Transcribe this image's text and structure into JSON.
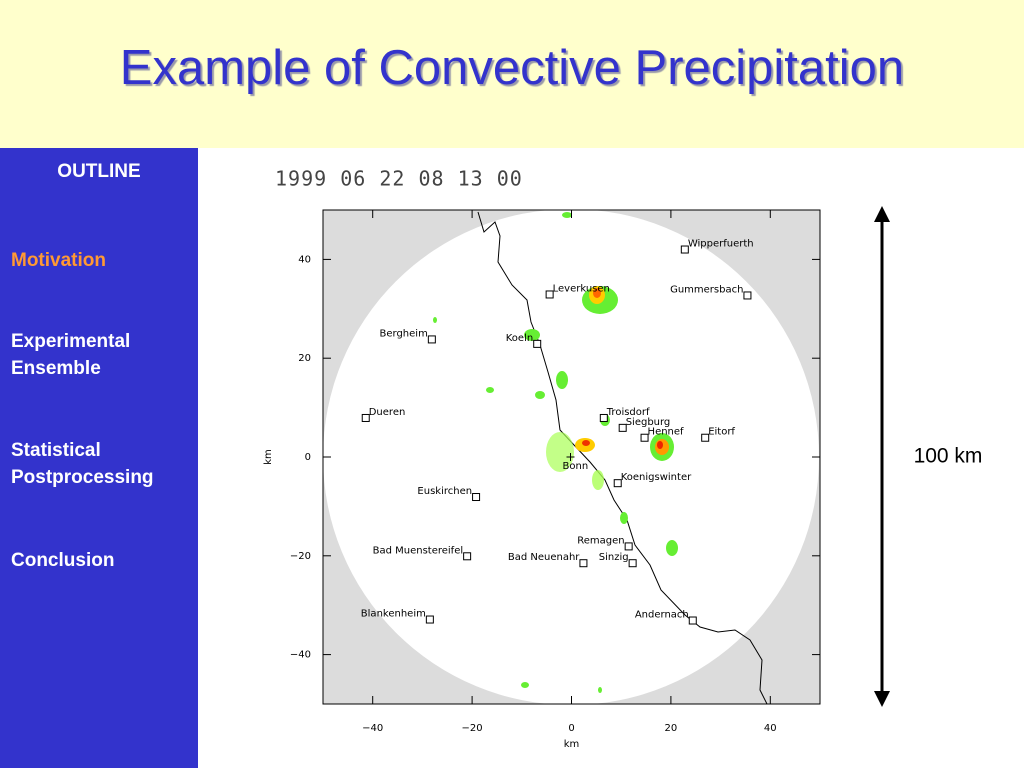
{
  "header": {
    "title": "Example of Convective Precipitation"
  },
  "sidebar": {
    "heading": "OUTLINE",
    "items": [
      "Motivation",
      "Experimental Ensemble",
      "Statistical Postprocessing",
      "Conclusion"
    ]
  },
  "figure": {
    "timestamp": "1999 06 22 08 13 00",
    "x_label": "km",
    "y_label": "km",
    "xlim": [
      -50,
      50
    ],
    "ylim": [
      -50,
      50
    ],
    "xticks": [
      {
        "value": -40,
        "label": "−40"
      },
      {
        "value": -20,
        "label": "−20"
      },
      0,
      20,
      40
    ],
    "yticks": [
      {
        "value": -40,
        "label": "−40"
      },
      {
        "value": -20,
        "label": "−20"
      },
      0,
      20,
      40
    ],
    "places": [
      {
        "name": "Wipperfuerth",
        "x": 22.8,
        "y": 42
      },
      {
        "name": "Leverkusen",
        "x": -4.4,
        "y": 32.9
      },
      {
        "name": "Gummersbach",
        "x": 35.4,
        "y": 32.7
      },
      {
        "name": "Bergheim",
        "x": -28.1,
        "y": 23.8
      },
      {
        "name": "Koeln",
        "x": -6.9,
        "y": 22.9
      },
      {
        "name": "Troisdorf",
        "x": 6.5,
        "y": 7.9
      },
      {
        "name": "Siegburg",
        "x": 10.3,
        "y": 5.9
      },
      {
        "name": "Hennef",
        "x": 14.7,
        "y": 3.9
      },
      {
        "name": "Eitorf",
        "x": 26.9,
        "y": 3.9
      },
      {
        "name": "Dueren",
        "x": -41.4,
        "y": 7.9
      },
      {
        "name": "Bonn",
        "x": -0.2,
        "y": 0
      },
      {
        "name": "Koenigswinter",
        "x": 9.3,
        "y": -5.3
      },
      {
        "name": "Euskirchen",
        "x": -19.2,
        "y": -8.1
      },
      {
        "name": "Remagen",
        "x": 11.5,
        "y": -18.1
      },
      {
        "name": "Bad Muenstereifel",
        "x": -21,
        "y": -20.1
      },
      {
        "name": "Bad Neuenahr",
        "x": 2.4,
        "y": -21.5
      },
      {
        "name": "Sinzig",
        "x": 12.3,
        "y": -21.5
      },
      {
        "name": "Blankenheim",
        "x": -28.5,
        "y": -32.9
      },
      {
        "name": "Andernach",
        "x": 24.4,
        "y": -33.1
      }
    ],
    "scale_label": "100 km"
  }
}
